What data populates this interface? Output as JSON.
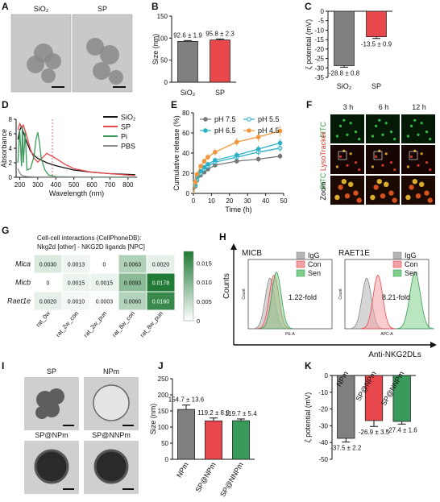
{
  "panels": {
    "A": {
      "letter": "A",
      "labels": [
        "SiO2",
        "SP"
      ]
    },
    "F": {
      "letter": "F",
      "times": [
        "3 h",
        "6 h",
        "12 h"
      ],
      "row_labels": [
        "FITC",
        "FITC",
        "LysoTracker",
        "Zoom"
      ]
    },
    "H": {
      "letter": "H",
      "titles": [
        "MICB",
        "RAET1E"
      ],
      "y_label": "Counts",
      "x_label": "Anti-NKG2DLs",
      "legend": [
        "IgG",
        "Con",
        "Sen"
      ],
      "fold": [
        "1.22-fold",
        "8.21-fold"
      ],
      "inner_y": "Count",
      "inner_x": [
        "PE-A",
        "APC-A"
      ]
    },
    "I": {
      "letter": "I",
      "labels": [
        "SP",
        "NPm",
        "SP@NPm",
        "SP@NNPm"
      ]
    }
  },
  "colors": {
    "gray": "#7f7f7f",
    "red": "#e8474c",
    "green": "#3a9a5b",
    "orange": "#f0953a",
    "cyan": "#2ab0c8",
    "heat_hi": "#1f7a35"
  },
  "chart_data": [
    {
      "id": "B",
      "type": "bar",
      "letter": "B",
      "categories": [
        "SiO2",
        "SP"
      ],
      "values": [
        92.6,
        95.8
      ],
      "labels": [
        "92.6 ± 1.9",
        "95.8 ± 2.3"
      ],
      "errors": [
        1.9,
        2.3
      ],
      "ylabel": "Size (nm)",
      "ylim": [
        0,
        150
      ],
      "yticks": [
        0,
        50,
        100,
        150
      ]
    },
    {
      "id": "C",
      "type": "bar",
      "letter": "C",
      "categories": [
        "SiO2",
        "SP"
      ],
      "values": [
        -28.8,
        -13.5
      ],
      "labels": [
        "-28.8 ± 0.8",
        "-13.5 ± 0.9"
      ],
      "errors": [
        0.8,
        0.9
      ],
      "ylabel": "ζ potential (mV)",
      "ylim": [
        -35,
        0
      ],
      "yticks": [
        0,
        -5,
        -10,
        -15,
        -20,
        -25,
        -30,
        -35
      ]
    },
    {
      "id": "D",
      "type": "line",
      "letter": "D",
      "xlabel": "Wavelength (nm)",
      "ylabel": "Absorbance",
      "xlim": [
        180,
        850
      ],
      "ylim": [
        0,
        8
      ],
      "xticks": [
        200,
        300,
        400,
        500,
        600,
        700,
        800
      ],
      "yticks": [
        0,
        2,
        4,
        6,
        8
      ],
      "series": [
        {
          "name": "SiO2",
          "x": [
            190,
            200,
            210,
            220,
            240,
            260,
            280,
            300,
            350,
            400,
            500,
            600,
            700,
            800,
            840
          ],
          "y": [
            5.2,
            6.5,
            7.0,
            6.2,
            4.8,
            3.6,
            3.0,
            2.6,
            2.0,
            1.6,
            1.0,
            0.7,
            0.5,
            0.4,
            0.35
          ]
        },
        {
          "name": "SP",
          "x": [
            190,
            200,
            210,
            220,
            240,
            260,
            280,
            300,
            330,
            350,
            400,
            450,
            500,
            600,
            700,
            800,
            840
          ],
          "y": [
            6.5,
            7.4,
            6.9,
            7.2,
            5.6,
            3.8,
            2.6,
            2.1,
            2.8,
            3.3,
            2.6,
            1.8,
            1.2,
            0.7,
            0.5,
            0.3,
            0.25
          ]
        },
        {
          "name": "Pi",
          "x": [
            190,
            200,
            210,
            215,
            220,
            230,
            240,
            260,
            280,
            290,
            300,
            310,
            320,
            340,
            360,
            400,
            500,
            600,
            800
          ],
          "y": [
            2.0,
            6.5,
            1.5,
            7.0,
            2.0,
            6.2,
            1.0,
            1.2,
            3.0,
            5.2,
            6.2,
            4.6,
            2.5,
            1.0,
            0.3,
            0.1,
            0.05,
            0.0,
            0.0
          ]
        },
        {
          "name": "PBS",
          "x": [
            190,
            200,
            210,
            220,
            240,
            300,
            400,
            600,
            800,
            840
          ],
          "y": [
            1.2,
            0.6,
            0.3,
            0.2,
            0.1,
            0.05,
            0.05,
            0.05,
            0.05,
            0.05
          ]
        }
      ]
    },
    {
      "id": "E",
      "type": "line",
      "letter": "E",
      "xlabel": "Time (h)",
      "ylabel": "Cumulative release (%)",
      "xlim": [
        0,
        50
      ],
      "ylim": [
        0,
        80
      ],
      "xticks": [
        0,
        10,
        20,
        30,
        40,
        50
      ],
      "yticks": [
        0,
        20,
        40,
        60,
        80
      ],
      "series": [
        {
          "name": "pH 7.5",
          "x": [
            0,
            1,
            2,
            4,
            6,
            8,
            12,
            24,
            36,
            48
          ],
          "y": [
            0,
            7,
            13,
            18,
            21,
            24,
            28,
            32,
            34,
            37
          ]
        },
        {
          "name": "pH 5.5",
          "x": [
            0,
            1,
            2,
            4,
            6,
            8,
            12,
            24,
            36,
            48
          ],
          "y": [
            0,
            8,
            14,
            20,
            24,
            27,
            31,
            36,
            41,
            45
          ]
        },
        {
          "name": "pH 6.5",
          "x": [
            0,
            1,
            2,
            4,
            6,
            8,
            12,
            24,
            36,
            48
          ],
          "y": [
            0,
            9,
            16,
            22,
            26,
            29,
            33,
            38,
            44,
            50
          ]
        },
        {
          "name": "pH 4.5",
          "x": [
            0,
            1,
            2,
            4,
            6,
            8,
            12,
            24,
            36,
            48
          ],
          "y": [
            0,
            11,
            19,
            27,
            32,
            36,
            41,
            51,
            56,
            62
          ]
        }
      ]
    },
    {
      "id": "G",
      "type": "heatmap",
      "letter": "G",
      "title": "Cell-cell interactions (CellPhoneDB):",
      "subtitle": "Nkg2d [other] - NKG2D ligands [NPC]",
      "rows": [
        "Mica",
        "Micb",
        "Raet1e"
      ],
      "cols": [
        "rat_0w",
        "rat_2w_con",
        "rat_2w_pun",
        "rat_8w_con",
        "rat_8w_pun"
      ],
      "values": [
        [
          0.003,
          0.0013,
          0,
          0.0063,
          0.002
        ],
        [
          0,
          0.0015,
          0.0015,
          0.0093,
          0.0178
        ],
        [
          0.002,
          0.001,
          0.0003,
          0.006,
          0.016
        ]
      ],
      "labels": [
        [
          "0.0030",
          "0.0013",
          "0",
          "0.0063",
          "0.0020"
        ],
        [
          "0",
          "0.0015",
          "0.0015",
          "0.0093",
          "0.0178"
        ],
        [
          "0.0020",
          "0.0010",
          "0.0003",
          "0.0060",
          "0.0160"
        ]
      ],
      "scale": [
        0,
        0.018
      ],
      "scale_ticks": [
        "0.015",
        "0.010",
        "0.005",
        "0"
      ]
    },
    {
      "id": "J",
      "type": "bar",
      "letter": "J",
      "categories": [
        "NPm",
        "SP@NPm",
        "SP@NNPm"
      ],
      "values": [
        154.7,
        119.2,
        119.7
      ],
      "labels": [
        "154.7 ± 13.6",
        "119.2 ± 8.9",
        "119.7 ± 5.4"
      ],
      "errors": [
        13.6,
        8.9,
        5.4
      ],
      "ylabel": "Size (nm)",
      "ylim": [
        0,
        250
      ],
      "yticks": [
        0,
        50,
        100,
        150,
        200,
        250
      ]
    },
    {
      "id": "K",
      "type": "bar",
      "letter": "K",
      "categories": [
        "NPm",
        "SP@NPm",
        "SP@NNPm"
      ],
      "values": [
        -37.5,
        -26.9,
        -27.4
      ],
      "labels": [
        "-37.5 ± 2.2",
        "-26.9 ± 3.5",
        "-27.4 ± 1.6"
      ],
      "errors": [
        2.2,
        3.5,
        1.6
      ],
      "ylabel": "ζ potential (mV)",
      "ylim": [
        -50,
        0
      ],
      "yticks": [
        0,
        -10,
        -20,
        -30,
        -40,
        -50
      ]
    }
  ]
}
